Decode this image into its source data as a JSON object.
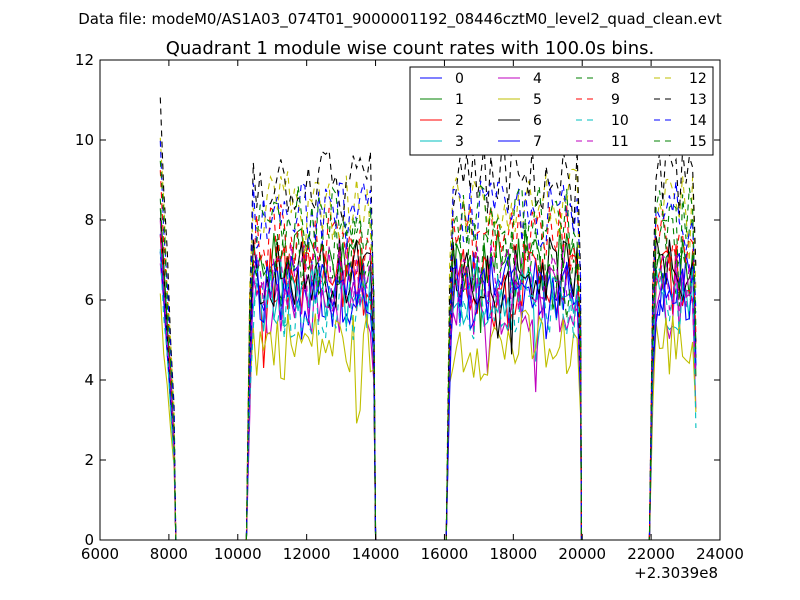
{
  "chart_data": {
    "type": "line",
    "suptitle": "Data file: modeM0/AS1A03_074T01_9000001192_08446cztM0_level2_quad_clean.evt",
    "title": "Quadrant 1 module wise count rates with 100.0s bins.",
    "xlabel": "",
    "ylabel": "",
    "x_offset_label": "+2.3039e8",
    "xlim": [
      6000,
      24000
    ],
    "ylim": [
      0,
      12
    ],
    "xticks": [
      6000,
      8000,
      10000,
      12000,
      14000,
      16000,
      18000,
      20000,
      22000,
      24000
    ],
    "yticks": [
      0,
      2,
      4,
      6,
      8,
      10,
      12
    ],
    "legend_position": "upper right",
    "segments": [
      {
        "start": 7750,
        "end": 8150,
        "shape": "decay"
      },
      {
        "start": 10350,
        "end": 13950,
        "shape": "plateau"
      },
      {
        "start": 16150,
        "end": 19950,
        "shape": "plateau"
      },
      {
        "start": 22050,
        "end": 23300,
        "shape": "plateau"
      }
    ],
    "gap_points": [
      8200,
      9000,
      10000,
      10250,
      14000,
      15000,
      16000,
      16050,
      19980,
      21000,
      21950
    ],
    "series": [
      {
        "name": "0",
        "color": "#0000ff",
        "dashed": false,
        "level": 6.3
      },
      {
        "name": "1",
        "color": "#008000",
        "dashed": false,
        "level": 6.9
      },
      {
        "name": "2",
        "color": "#ff0000",
        "dashed": false,
        "level": 6.5
      },
      {
        "name": "3",
        "color": "#00bfbf",
        "dashed": false,
        "level": 6.1
      },
      {
        "name": "4",
        "color": "#bf00bf",
        "dashed": false,
        "level": 6.0
      },
      {
        "name": "5",
        "color": "#bfbf00",
        "dashed": false,
        "level": 4.9
      },
      {
        "name": "6",
        "color": "#000000",
        "dashed": false,
        "level": 6.7
      },
      {
        "name": "7",
        "color": "#0000ff",
        "dashed": false,
        "level": 6.2
      },
      {
        "name": "8",
        "color": "#008000",
        "dashed": true,
        "level": 7.2
      },
      {
        "name": "9",
        "color": "#ff0000",
        "dashed": true,
        "level": 7.6
      },
      {
        "name": "10",
        "color": "#00bfbf",
        "dashed": true,
        "level": 5.9
      },
      {
        "name": "11",
        "color": "#bf00bf",
        "dashed": true,
        "level": 6.6
      },
      {
        "name": "12",
        "color": "#bfbf00",
        "dashed": true,
        "level": 8.4
      },
      {
        "name": "13",
        "color": "#000000",
        "dashed": true,
        "level": 9.0
      },
      {
        "name": "14",
        "color": "#0000ff",
        "dashed": true,
        "level": 8.1
      },
      {
        "name": "15",
        "color": "#008000",
        "dashed": true,
        "level": 8.0
      }
    ]
  }
}
